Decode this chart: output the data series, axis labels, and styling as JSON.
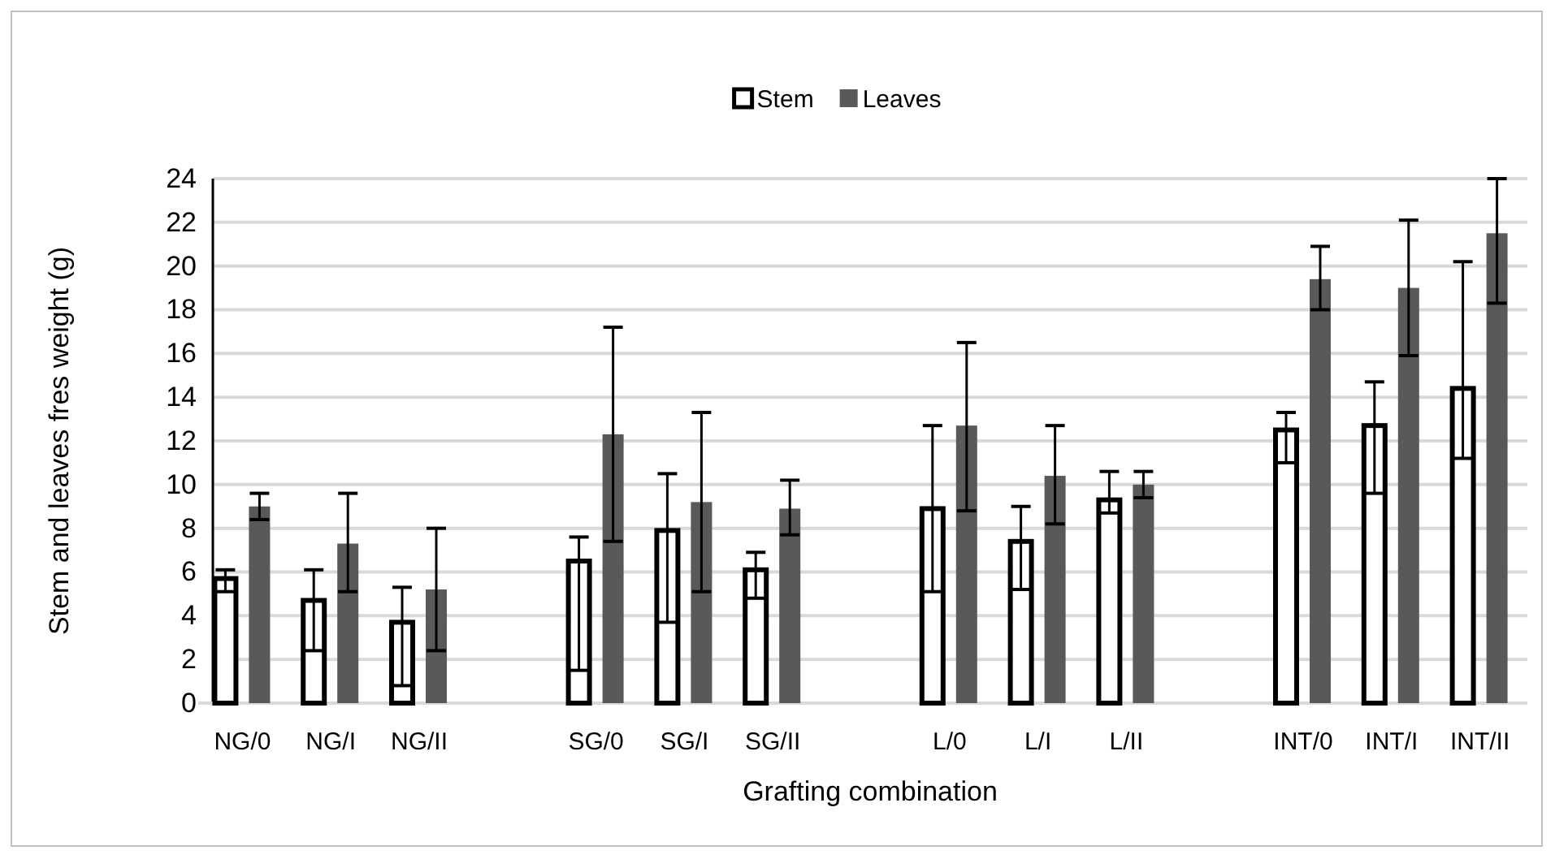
{
  "chart_data": {
    "type": "bar",
    "categories": [
      "NG/0",
      "NG/I",
      "NG/II",
      null,
      "SG/0",
      "SG/I",
      "SG/II",
      null,
      "L/0",
      "L/I",
      "L/II",
      null,
      "INT/0",
      "INT/I",
      "INT/II"
    ],
    "xlabel": "Grafting combination",
    "ylabel": "Stem and leaves fres weight (g)",
    "ylim": [
      0,
      24
    ],
    "yticks": [
      0,
      2,
      4,
      6,
      8,
      10,
      12,
      14,
      16,
      18,
      20,
      22,
      24
    ],
    "grid": "y",
    "legend": "top",
    "series": [
      {
        "name": "Stem",
        "color": "#ffffff",
        "values": [
          5.7,
          4.7,
          3.7,
          null,
          6.5,
          7.9,
          6.1,
          null,
          8.9,
          7.4,
          9.3,
          null,
          12.5,
          12.7,
          14.4
        ],
        "errors": [
          [
            5.1,
            6.1
          ],
          [
            2.4,
            6.1
          ],
          [
            0.8,
            5.3
          ],
          null,
          [
            1.5,
            7.6
          ],
          [
            3.7,
            10.5
          ],
          [
            4.8,
            6.9
          ],
          null,
          [
            5.1,
            12.7
          ],
          [
            5.2,
            9.0
          ],
          [
            8.7,
            10.6
          ],
          null,
          [
            11.0,
            13.3
          ],
          [
            9.6,
            14.7
          ],
          [
            11.2,
            20.2
          ]
        ]
      },
      {
        "name": "Leaves",
        "color": "#595959",
        "values": [
          9.0,
          7.3,
          5.2,
          null,
          12.3,
          9.2,
          8.9,
          null,
          12.7,
          10.4,
          10.0,
          null,
          19.4,
          19.0,
          21.5
        ],
        "errors": [
          [
            8.4,
            9.6
          ],
          [
            5.1,
            9.6
          ],
          [
            2.4,
            8.0
          ],
          null,
          [
            7.4,
            17.2
          ],
          [
            5.1,
            13.3
          ],
          [
            7.7,
            10.2
          ],
          null,
          [
            8.8,
            16.5
          ],
          [
            8.2,
            12.7
          ],
          [
            9.4,
            10.6
          ],
          null,
          [
            18.0,
            20.9
          ],
          [
            15.9,
            22.1
          ],
          [
            18.3,
            24
          ]
        ]
      }
    ]
  }
}
